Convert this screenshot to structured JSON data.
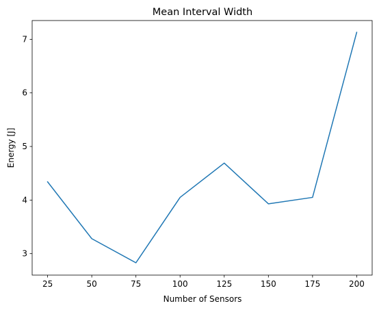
{
  "chart_data": {
    "type": "line",
    "title": "Mean Interval Width",
    "xlabel": "Number of Sensors",
    "ylabel": "Energy [J]",
    "x": [
      25,
      50,
      75,
      100,
      125,
      150,
      175,
      200
    ],
    "series": [
      {
        "values": [
          4.34,
          3.28,
          2.83,
          4.05,
          4.69,
          3.93,
          4.05,
          7.13
        ],
        "color": "#1f77b4"
      }
    ],
    "xticks": [
      25,
      50,
      75,
      100,
      125,
      150,
      175,
      200
    ],
    "yticks": [
      3,
      4,
      5,
      6,
      7
    ],
    "xlim": [
      16.25,
      208.75
    ],
    "ylim": [
      2.6,
      7.35
    ],
    "grid": false,
    "legend": "none"
  }
}
